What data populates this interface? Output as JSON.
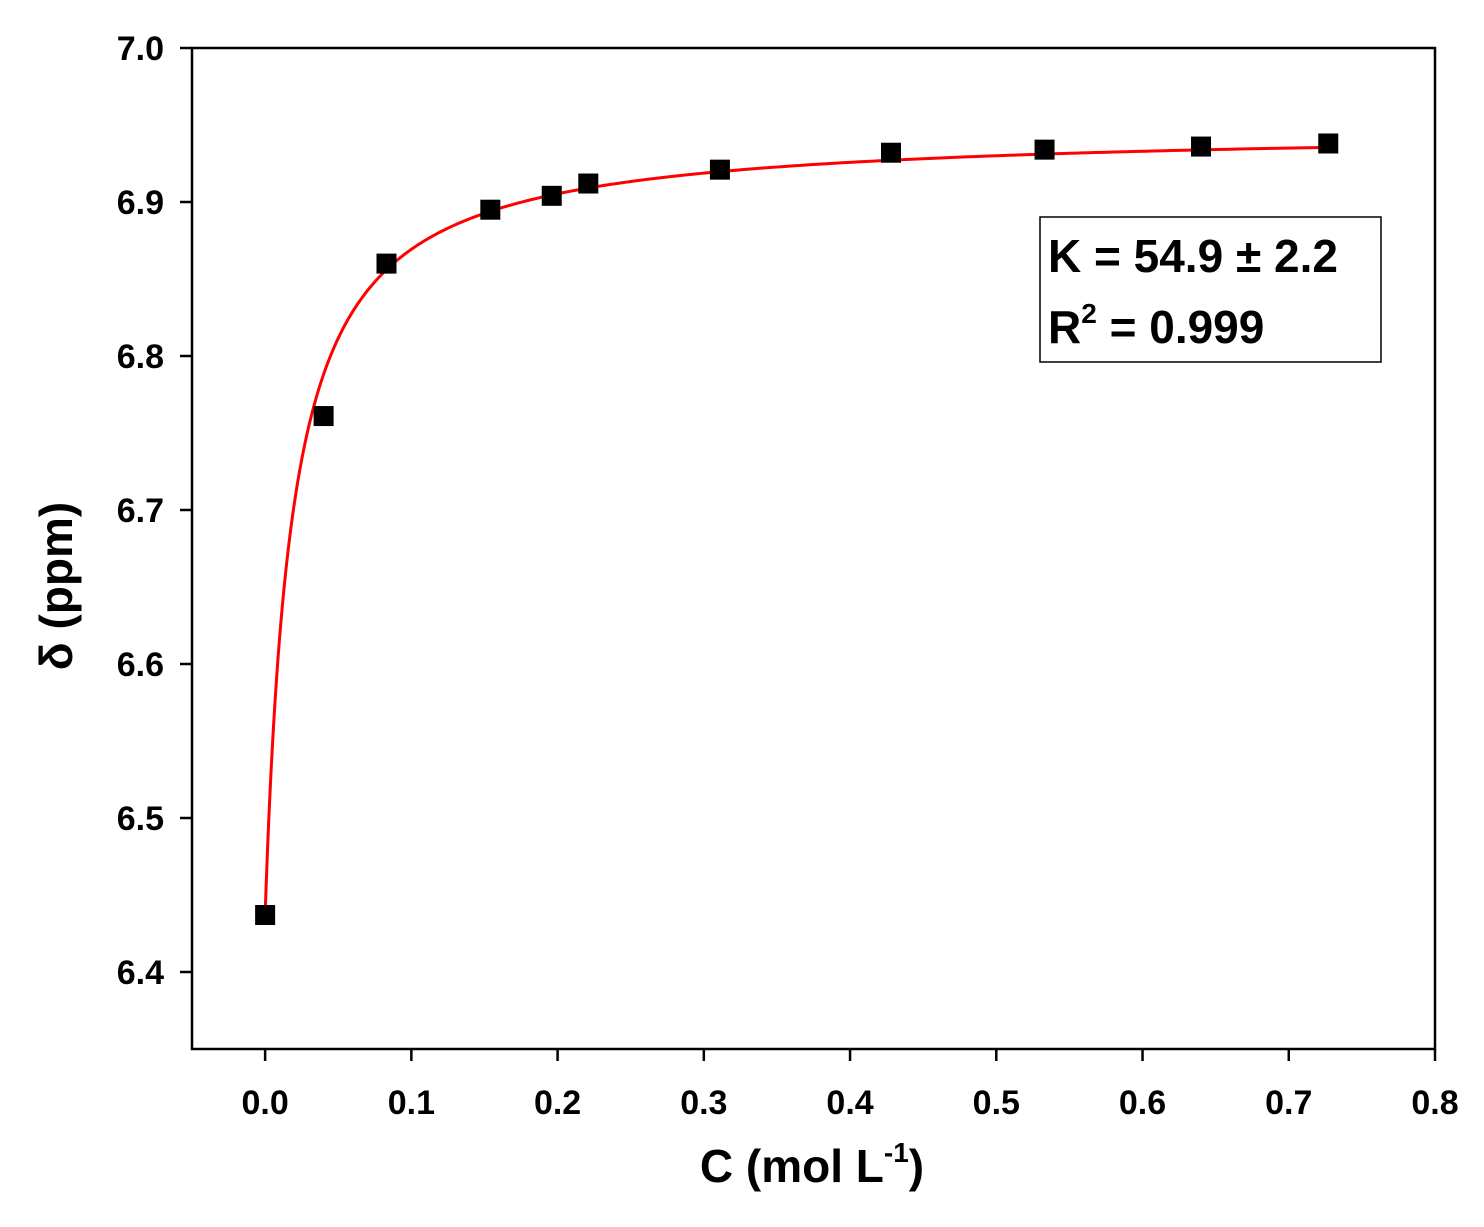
{
  "chart_data": {
    "type": "scatter",
    "xlabel": "C (mol L",
    "xlabel_superscript": "-1",
    "xlabel_suffix": ")",
    "ylabel": "δ (ppm)",
    "xlim": [
      -0.05,
      0.8
    ],
    "ylim": [
      6.35,
      7.0
    ],
    "x_ticks": [
      0.0,
      0.1,
      0.2,
      0.3,
      0.4,
      0.5,
      0.6,
      0.7,
      0.8
    ],
    "x_tick_labels": [
      "0.0",
      "0.1",
      "0.2",
      "0.3",
      "0.4",
      "0.5",
      "0.6",
      "0.7",
      "0.8"
    ],
    "y_ticks": [
      6.4,
      6.5,
      6.6,
      6.7,
      6.8,
      6.9,
      7.0
    ],
    "y_tick_labels": [
      "6.4",
      "6.5",
      "6.6",
      "6.7",
      "6.8",
      "6.9",
      "7.0"
    ],
    "grid": false,
    "colors": {
      "points": "#000000",
      "fit": "#ff0000",
      "axes": "#000000"
    },
    "series": [
      {
        "kind": "points",
        "marker": "square",
        "x": [
          0.0,
          0.04,
          0.083,
          0.154,
          0.196,
          0.221,
          0.311,
          0.428,
          0.533,
          0.64,
          0.727
        ],
        "y": [
          6.437,
          6.761,
          6.86,
          6.895,
          6.904,
          6.912,
          6.921,
          6.932,
          6.934,
          6.936,
          6.938
        ]
      },
      {
        "kind": "fit-line",
        "model": "1:1 binding isotherm",
        "K": 54.9,
        "delta_free": 6.437,
        "delta_complex": 6.948
      }
    ],
    "annotation": {
      "line1": "K = 54.9 ± 2.2",
      "line2_prefix": "R",
      "line2_superscript": "2",
      "line2_suffix": " = 0.999"
    }
  }
}
